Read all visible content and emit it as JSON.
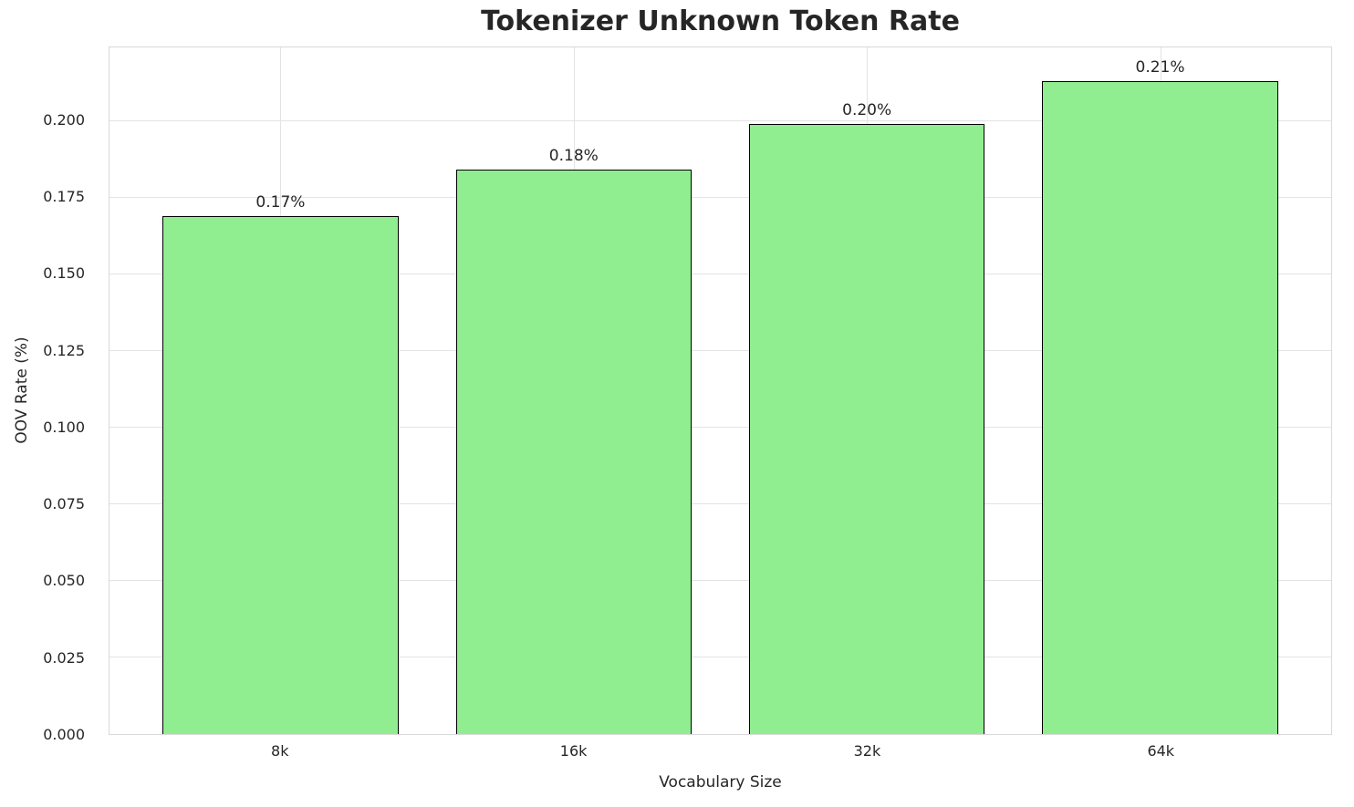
{
  "chart_data": {
    "type": "bar",
    "title": "Tokenizer Unknown Token Rate",
    "xlabel": "Vocabulary Size",
    "ylabel": "OOV Rate (%)",
    "categories": [
      "8k",
      "16k",
      "32k",
      "64k"
    ],
    "values": [
      0.169,
      0.184,
      0.199,
      0.213
    ],
    "bar_labels": [
      "0.17%",
      "0.18%",
      "0.20%",
      "0.21%"
    ],
    "ylim": [
      0,
      0.224
    ],
    "yticks": [
      0,
      0.025,
      0.05,
      0.075,
      0.1,
      0.125,
      0.15,
      0.175,
      0.2
    ],
    "ytick_labels": [
      "0.000",
      "0.025",
      "0.050",
      "0.075",
      "0.100",
      "0.125",
      "0.150",
      "0.175",
      "0.200"
    ],
    "bar_color": "#90ee90",
    "bar_edge_color": "#000000",
    "grid": true,
    "legend": false,
    "background": "#ffffff"
  }
}
